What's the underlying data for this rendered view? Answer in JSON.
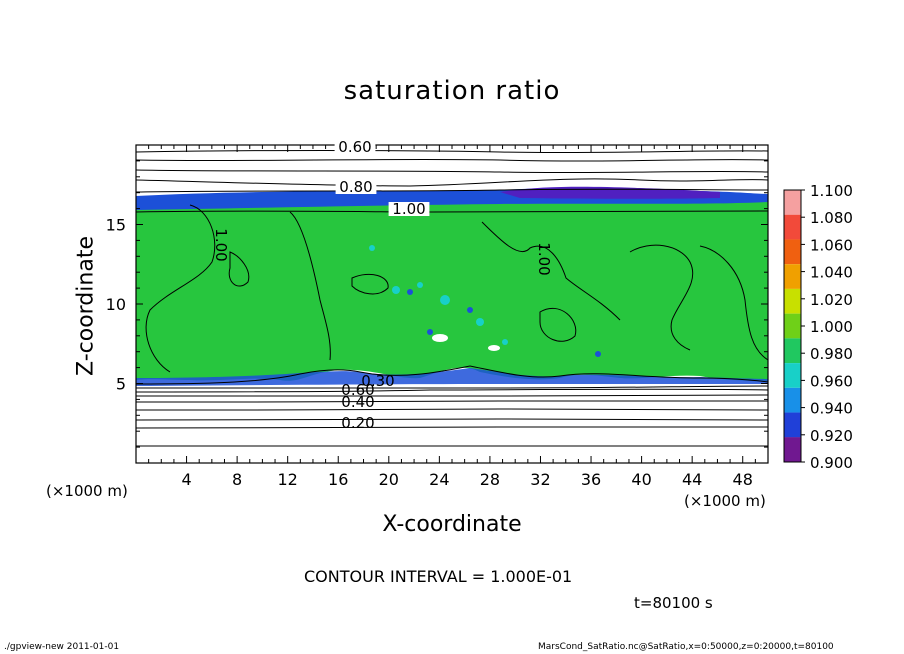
{
  "chart_data": {
    "type": "heatmap",
    "title": "saturation ratio",
    "xlabel": "X-coordinate",
    "ylabel": "Z-coordinate",
    "x_unit_label_left": "(×1000 m)",
    "x_unit_label_right": "(×1000 m)",
    "xlim": [
      0,
      50
    ],
    "ylim": [
      0,
      20
    ],
    "x_ticks": [
      "4",
      "8",
      "12",
      "16",
      "20",
      "24",
      "28",
      "32",
      "36",
      "40",
      "44",
      "48"
    ],
    "x_tick_values": [
      4,
      8,
      12,
      16,
      20,
      24,
      28,
      32,
      36,
      40,
      44,
      48
    ],
    "y_ticks": [
      "5",
      "10",
      "15"
    ],
    "y_tick_values": [
      5,
      10,
      15
    ],
    "colorbar": {
      "levels": [
        "1.100",
        "1.080",
        "1.060",
        "1.040",
        "1.020",
        "1.000",
        "0.980",
        "0.960",
        "0.940",
        "0.920",
        "0.900"
      ],
      "colors": [
        "#f5a0a0",
        "#f24a3a",
        "#f06010",
        "#f0a000",
        "#c8e000",
        "#6fd018",
        "#20c860",
        "#18d0c8",
        "#1890e8",
        "#2040d8",
        "#2010a0",
        "#701890"
      ]
    },
    "contour_labels": [
      "0.60",
      "0.80",
      "1.00",
      "1.00",
      "1.00",
      "0.30",
      "0.60",
      "0.40",
      "0.20"
    ],
    "contour_interval": "CONTOUR INTERVAL = 1.000E-01",
    "time": "t=80100 s",
    "grid": false,
    "legend": "colorbar-right"
  },
  "footer": {
    "left": "./gpview-new  2011-01-01",
    "right": "MarsCond_SatRatio.nc@SatRatio,x=0:50000,z=0:20000,t=80100"
  },
  "colors": {
    "field_green": "#27c63e",
    "band_blue": "#1c50d8",
    "band_purple": "#5020c0"
  }
}
